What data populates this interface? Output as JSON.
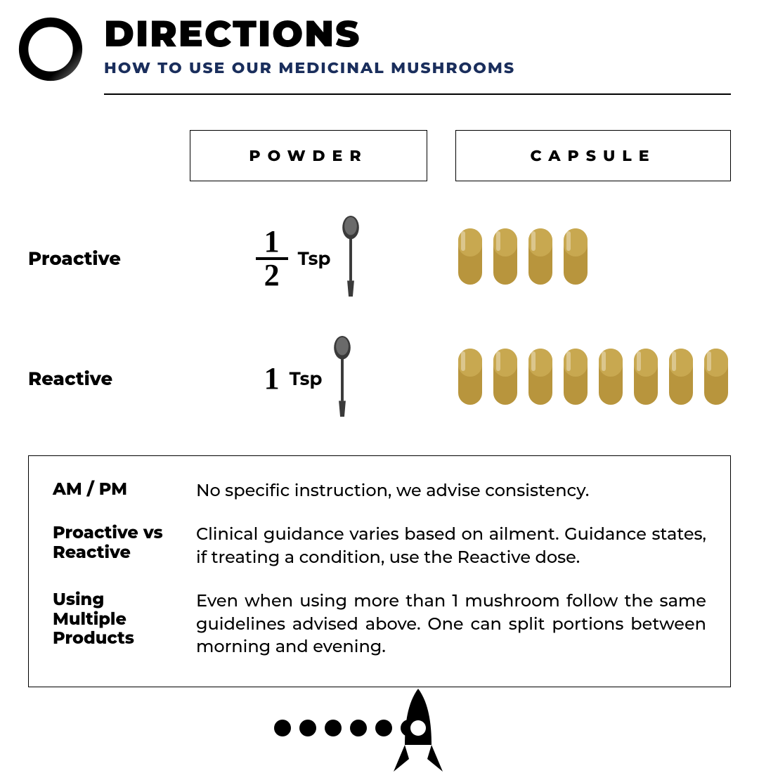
{
  "header": {
    "title": "DIRECTIONS",
    "subtitle": "HOW TO USE OUR MEDICINAL MUSHROOMS",
    "subtitle_color": "#1a2e5c"
  },
  "columns": {
    "powder": "POWDER",
    "capsule": "CAPSULE"
  },
  "rows": {
    "proactive": {
      "label": "Proactive",
      "powder": {
        "numerator": "1",
        "denominator": "2",
        "unit": "Tsp",
        "is_fraction": true
      },
      "capsule_count": 4
    },
    "reactive": {
      "label": "Reactive",
      "powder": {
        "value": "1",
        "unit": "Tsp",
        "is_fraction": false
      },
      "capsule_count": 8
    }
  },
  "notes": {
    "am_pm": {
      "label": "AM / PM",
      "body": "No specific instruction, we advise consistency."
    },
    "proactive_vs_reactive": {
      "label": "Proactive vs Reactive",
      "body": "Clinical guidance varies based on ailment. Guidance states, if treating a condition, use the Reactive dose."
    },
    "multiple": {
      "label": "Using Multiple Products",
      "body": "Even when using more than 1 mushroom follow the same guidelines advised above. One can split portions between morning and evening."
    }
  },
  "style": {
    "capsule_fill": "#b8953d",
    "capsule_cap": "#c8a850",
    "spoon_fill": "#4a4a4a",
    "spoon_highlight": "#8a8a8a",
    "border_color": "#000000",
    "text_color": "#000000"
  },
  "footer": {
    "dot_count": 6
  }
}
